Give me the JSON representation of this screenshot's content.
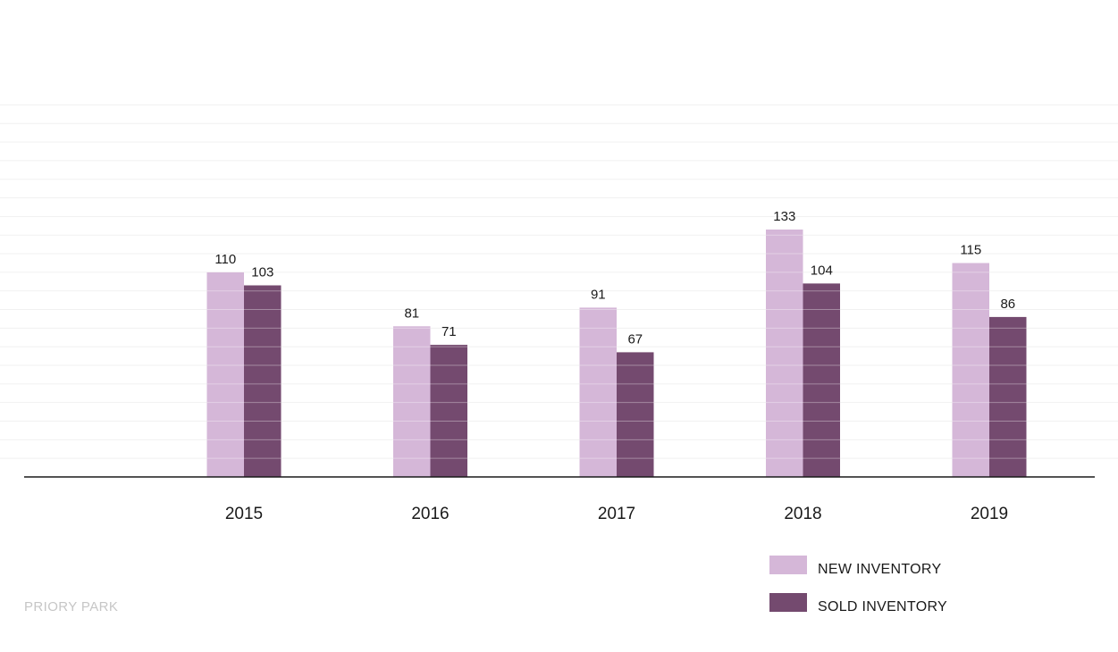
{
  "chart_data": {
    "type": "bar",
    "title": "",
    "xlabel": "",
    "ylabel": "",
    "categories": [
      "2015",
      "2016",
      "2017",
      "2018",
      "2019"
    ],
    "series": [
      {
        "name": "NEW INVENTORY",
        "values": [
          110,
          81,
          91,
          133,
          115
        ],
        "color": "#d5b7d8"
      },
      {
        "name": "SOLD INVENTORY",
        "values": [
          103,
          71,
          67,
          104,
          86
        ],
        "color": "#744a6f"
      }
    ],
    "ylim": [
      0,
      200
    ],
    "grid": true,
    "gridline_step": 10,
    "y_axis_labels_shown": false,
    "data_labels_shown": true,
    "legend_position": "bottom-right"
  },
  "footer": {
    "label": "PRIORY PARK"
  },
  "colors": {
    "axis": "#1a1a1a",
    "grid": "#f1f1f1",
    "bar_stripe": "#ffffff"
  }
}
